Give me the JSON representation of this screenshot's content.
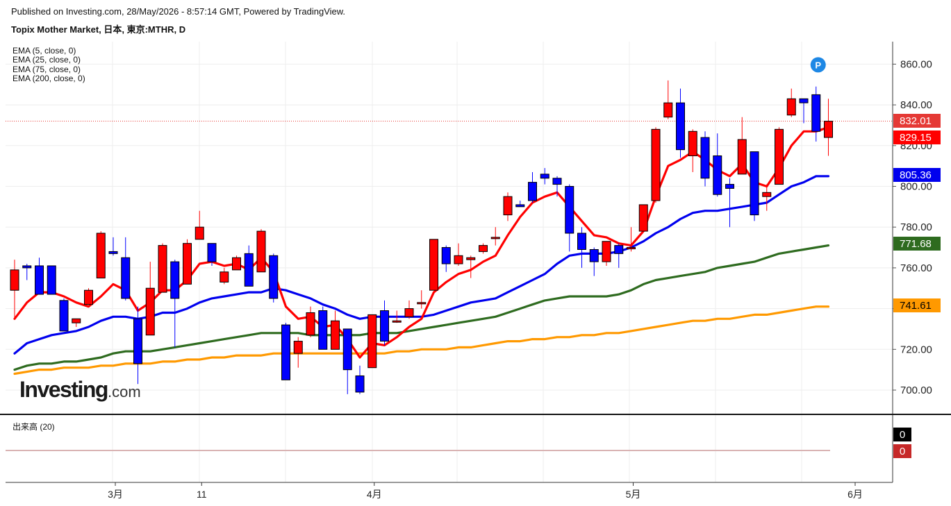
{
  "header": {
    "published": "Published on Investing.com, 28/May/2026 - 8:57:14 GMT, Powered by TradingView.",
    "instrument": "Topix Mother Market, 日本, 東京:MTHR, D"
  },
  "indicators": [
    "EMA (5, close, 0)",
    "EMA (25, close, 0)",
    "EMA (75, close, 0)",
    "EMA (200, close, 0)"
  ],
  "logo": {
    "main": "Investing",
    "suffix": ".com"
  },
  "volume_panel": {
    "label": "出来高 (20)",
    "badges": [
      "0",
      "0"
    ],
    "badge_colors": [
      "#000000",
      "#c62828"
    ]
  },
  "colors": {
    "up": "#ff0000",
    "down": "#0000ff",
    "ema5": "#ff0000",
    "ema25": "#0000ee",
    "ema75": "#2e6b1f",
    "ema200": "#ff9900",
    "last_price_line": "#e53935"
  },
  "chart_data": {
    "type": "candlestick",
    "ylim": [
      690,
      868
    ],
    "y_ticks": [
      700,
      720,
      740,
      760,
      780,
      800,
      820,
      840,
      860
    ],
    "y_tick_labels": [
      "700.00",
      "720.00",
      "740.00",
      "760.00",
      "780.00",
      "800.00",
      "820.00",
      "840.00",
      "860.00"
    ],
    "x_labels": [
      {
        "index": 8,
        "label": "3月"
      },
      {
        "index": 15,
        "label": "11"
      },
      {
        "index": 29,
        "label": "4月"
      },
      {
        "index": 50,
        "label": "5月"
      },
      {
        "index": 68,
        "label": "6月"
      }
    ],
    "candles": [
      {
        "o": 749,
        "h": 764,
        "l": 735,
        "c": 759
      },
      {
        "o": 761,
        "h": 762,
        "l": 754,
        "c": 760
      },
      {
        "o": 761,
        "h": 765,
        "l": 747,
        "c": 747
      },
      {
        "o": 761,
        "h": 761,
        "l": 747,
        "c": 747
      },
      {
        "o": 744,
        "h": 745,
        "l": 729,
        "c": 729
      },
      {
        "o": 733,
        "h": 734,
        "l": 731,
        "c": 735
      },
      {
        "o": 742,
        "h": 750,
        "l": 742,
        "c": 749
      },
      {
        "o": 755,
        "h": 778,
        "l": 755,
        "c": 777
      },
      {
        "o": 768,
        "h": 775,
        "l": 766,
        "c": 767
      },
      {
        "o": 765,
        "h": 775,
        "l": 744,
        "c": 745
      },
      {
        "o": 735,
        "h": 741,
        "l": 703,
        "c": 713
      },
      {
        "o": 727,
        "h": 763,
        "l": 727,
        "c": 750
      },
      {
        "o": 748,
        "h": 772,
        "l": 748,
        "c": 771
      },
      {
        "o": 763,
        "h": 764,
        "l": 721,
        "c": 745
      },
      {
        "o": 752,
        "h": 774,
        "l": 752,
        "c": 772
      },
      {
        "o": 774,
        "h": 788,
        "l": 774,
        "c": 780
      },
      {
        "o": 772,
        "h": 772,
        "l": 761,
        "c": 763
      },
      {
        "o": 753,
        "h": 760,
        "l": 752,
        "c": 758
      },
      {
        "o": 759,
        "h": 766,
        "l": 759,
        "c": 765
      },
      {
        "o": 767,
        "h": 771,
        "l": 751,
        "c": 751
      },
      {
        "o": 758,
        "h": 779,
        "l": 758,
        "c": 778
      },
      {
        "o": 766,
        "h": 767,
        "l": 743,
        "c": 745
      },
      {
        "o": 732,
        "h": 733,
        "l": 705,
        "c": 705
      },
      {
        "o": 718,
        "h": 726,
        "l": 711,
        "c": 724
      },
      {
        "o": 727,
        "h": 741,
        "l": 726,
        "c": 738
      },
      {
        "o": 739,
        "h": 741,
        "l": 720,
        "c": 720
      },
      {
        "o": 720,
        "h": 739,
        "l": 720,
        "c": 734
      },
      {
        "o": 730,
        "h": 730,
        "l": 698,
        "c": 710
      },
      {
        "o": 707,
        "h": 712,
        "l": 698,
        "c": 699
      },
      {
        "o": 711,
        "h": 737,
        "l": 711,
        "c": 737
      },
      {
        "o": 739,
        "h": 744,
        "l": 722,
        "c": 724
      },
      {
        "o": 734,
        "h": 739,
        "l": 733,
        "c": 734
      },
      {
        "o": 736,
        "h": 744,
        "l": 735,
        "c": 740
      },
      {
        "o": 743,
        "h": 749,
        "l": 740,
        "c": 743
      },
      {
        "o": 749,
        "h": 774,
        "l": 749,
        "c": 774
      },
      {
        "o": 770,
        "h": 771,
        "l": 758,
        "c": 762
      },
      {
        "o": 762,
        "h": 772,
        "l": 761,
        "c": 766
      },
      {
        "o": 764,
        "h": 766,
        "l": 755,
        "c": 765
      },
      {
        "o": 768,
        "h": 772,
        "l": 767,
        "c": 771
      },
      {
        "o": 775,
        "h": 780,
        "l": 771,
        "c": 775
      },
      {
        "o": 786,
        "h": 797,
        "l": 783,
        "c": 795
      },
      {
        "o": 791,
        "h": 793,
        "l": 790,
        "c": 790
      },
      {
        "o": 802,
        "h": 807,
        "l": 792,
        "c": 793
      },
      {
        "o": 806,
        "h": 809,
        "l": 801,
        "c": 804
      },
      {
        "o": 804,
        "h": 805,
        "l": 795,
        "c": 801
      },
      {
        "o": 800,
        "h": 801,
        "l": 768,
        "c": 777
      },
      {
        "o": 777,
        "h": 780,
        "l": 760,
        "c": 769
      },
      {
        "o": 769,
        "h": 770,
        "l": 756,
        "c": 763
      },
      {
        "o": 763,
        "h": 773,
        "l": 761,
        "c": 773
      },
      {
        "o": 771,
        "h": 772,
        "l": 760,
        "c": 767
      },
      {
        "o": 770,
        "h": 780,
        "l": 768,
        "c": 770
      },
      {
        "o": 778,
        "h": 791,
        "l": 778,
        "c": 791
      },
      {
        "o": 793,
        "h": 829,
        "l": 792,
        "c": 828
      },
      {
        "o": 834,
        "h": 852,
        "l": 833,
        "c": 841
      },
      {
        "o": 841,
        "h": 848,
        "l": 814,
        "c": 818
      },
      {
        "o": 815,
        "h": 828,
        "l": 807,
        "c": 827
      },
      {
        "o": 824,
        "h": 827,
        "l": 800,
        "c": 804
      },
      {
        "o": 815,
        "h": 826,
        "l": 795,
        "c": 796
      },
      {
        "o": 801,
        "h": 804,
        "l": 780,
        "c": 799
      },
      {
        "o": 806,
        "h": 834,
        "l": 806,
        "c": 823
      },
      {
        "o": 817,
        "h": 817,
        "l": 783,
        "c": 786
      },
      {
        "o": 795,
        "h": 801,
        "l": 788,
        "c": 797
      },
      {
        "o": 801,
        "h": 829,
        "l": 801,
        "c": 828
      },
      {
        "o": 835,
        "h": 848,
        "l": 834,
        "c": 843
      },
      {
        "o": 843,
        "h": 842,
        "l": 831,
        "c": 841
      },
      {
        "o": 845,
        "h": 849,
        "l": 822,
        "c": 827
      },
      {
        "o": 824,
        "h": 843,
        "l": 815,
        "c": 832
      }
    ],
    "series": [
      {
        "name": "EMA (5, close, 0)",
        "color": "#ff0000",
        "values": [
          735,
          743,
          748,
          748,
          746,
          743,
          741,
          746,
          752,
          749,
          739,
          743,
          749,
          749,
          754,
          762,
          763,
          761,
          762,
          759,
          765,
          758,
          741,
          735,
          736,
          731,
          732,
          725,
          716,
          723,
          722,
          726,
          731,
          735,
          748,
          753,
          757,
          759,
          763,
          766,
          776,
          785,
          792,
          795,
          797,
          790,
          783,
          776,
          775,
          772,
          771,
          778,
          795,
          810,
          813,
          817,
          813,
          808,
          805,
          811,
          802,
          800,
          809,
          820,
          827,
          827,
          829
        ]
      },
      {
        "name": "EMA (25, close, 0)",
        "color": "#0000ee",
        "values": [
          718,
          723,
          725,
          727,
          728,
          729,
          731,
          734,
          736,
          736,
          735,
          736,
          738,
          738,
          740,
          743,
          745,
          746,
          747,
          748,
          748,
          750,
          749,
          747,
          745,
          742,
          740,
          737,
          735,
          736,
          736,
          736,
          736,
          736,
          737,
          739,
          741,
          743,
          744,
          745,
          748,
          751,
          754,
          757,
          762,
          766,
          767,
          767,
          767,
          768,
          770,
          773,
          777,
          780,
          784,
          787,
          788,
          788,
          789,
          790,
          791,
          792,
          796,
          800,
          802,
          805,
          805
        ]
      },
      {
        "name": "EMA (75, close, 0)",
        "color": "#2e6b1f",
        "values": [
          710,
          712,
          713,
          713,
          714,
          714,
          715,
          716,
          718,
          719,
          719,
          719,
          720,
          721,
          722,
          723,
          724,
          725,
          726,
          727,
          728,
          728,
          728,
          728,
          727,
          727,
          727,
          727,
          727,
          728,
          728,
          728,
          729,
          730,
          731,
          732,
          733,
          734,
          735,
          736,
          738,
          740,
          742,
          744,
          745,
          746,
          746,
          746,
          746,
          747,
          749,
          752,
          754,
          755,
          756,
          757,
          758,
          760,
          761,
          762,
          763,
          765,
          767,
          768,
          769,
          770,
          771
        ]
      },
      {
        "name": "EMA (200, close, 0)",
        "color": "#ff9900",
        "values": [
          708,
          709,
          710,
          710,
          711,
          711,
          711,
          712,
          712,
          713,
          713,
          713,
          714,
          714,
          715,
          715,
          716,
          716,
          717,
          717,
          717,
          718,
          718,
          718,
          718,
          718,
          718,
          718,
          718,
          718,
          718,
          719,
          719,
          720,
          720,
          720,
          721,
          721,
          722,
          723,
          724,
          724,
          725,
          725,
          726,
          726,
          727,
          727,
          728,
          728,
          729,
          730,
          731,
          732,
          733,
          734,
          734,
          735,
          735,
          736,
          737,
          737,
          738,
          739,
          740,
          741,
          741
        ]
      }
    ],
    "price_badges": [
      {
        "label": "832.01",
        "value": 832.01,
        "bg": "#e53935",
        "fg": "#ffffff"
      },
      {
        "label": "829.15",
        "value": 829.15,
        "bg": "#ff0000",
        "fg": "#ffffff"
      },
      {
        "label": "805.36",
        "value": 805.36,
        "bg": "#0000ee",
        "fg": "#ffffff"
      },
      {
        "label": "771.68",
        "value": 771.68,
        "bg": "#2e6b1f",
        "fg": "#ffffff"
      },
      {
        "label": "741.61",
        "value": 741.61,
        "bg": "#ff9900",
        "fg": "#000000"
      }
    ],
    "last_price": 832.01,
    "marker": {
      "label": "P",
      "index": 65,
      "value": 860
    }
  }
}
